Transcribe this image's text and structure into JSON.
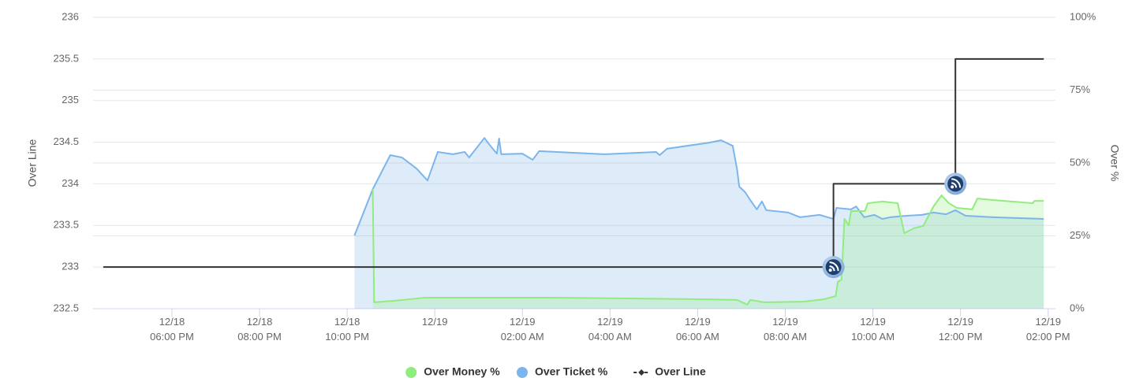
{
  "chart_data": {
    "type": "line",
    "xlim": [
      "12/18 04:12 PM",
      "12/19 02:10 PM"
    ],
    "xticks": [
      "12/18 06:00 PM",
      "12/18 08:00 PM",
      "12/18 10:00 PM",
      {
        "value": "12/19 12:00 AM",
        "label": "12/19"
      },
      "12/19 02:00 AM",
      "12/19 04:00 AM",
      "12/19 06:00 AM",
      "12/19 08:00 AM",
      "12/19 10:00 AM",
      "12/19 12:00 PM",
      "12/19 02:00 PM"
    ],
    "ylabel": "Over Line",
    "ylim": [
      232.5,
      236
    ],
    "yticks": [
      232.5,
      233,
      233.5,
      234,
      234.5,
      235,
      235.5,
      236
    ],
    "y2label": "Over %",
    "y2lim": [
      0,
      100
    ],
    "y2ticks": [
      {
        "value": 0,
        "label": "0%"
      },
      {
        "value": 25,
        "label": "25%"
      },
      {
        "value": 50,
        "label": "50%"
      },
      {
        "value": 75,
        "label": "75%"
      },
      {
        "value": 100,
        "label": "100%"
      }
    ],
    "grid": true,
    "legend": "bottom",
    "series": [
      {
        "name": "Over Money %",
        "color": "#90ed7d",
        "axis": "y2",
        "area": true,
        "x": [
          "12/18 10:35 PM",
          "12/18 10:37 PM",
          "12/18 11:04 PM",
          "12/18 11:47 PM",
          "12/19 12:52 AM",
          "12/19 02:40 AM",
          "12/19 04:28 AM",
          "12/19 06:16 AM",
          "12/19 06:54 AM",
          "12/19 07:08 AM",
          "12/19 07:12 AM",
          "12/19 07:31 AM",
          "12/19 08:25 AM",
          "12/19 08:52 AM",
          "12/19 09:09 AM",
          "12/19 09:12 AM",
          "12/19 09:17 AM",
          "12/19 09:21 AM",
          "12/19 09:27 AM",
          "12/19 09:30 AM",
          "12/19 09:49 AM",
          "12/19 09:53 AM",
          "12/19 10:13 AM",
          "12/19 10:34 AM",
          "12/19 10:43 AM",
          "12/19 10:56 AM",
          "12/19 11:09 AM",
          "12/19 11:23 AM",
          "12/19 11:34 AM",
          "12/19 11:44 AM",
          "12/19 11:55 AM",
          "12/19 12:16 PM",
          "12/19 12:23 PM",
          "12/19 12:45 PM",
          "12/19 01:39 PM",
          "12/19 01:41 PM",
          "12/19 01:54 PM"
        ],
        "values": [
          41,
          2.2,
          2.7,
          3.8,
          3.8,
          3.8,
          3.5,
          3.2,
          3,
          1.4,
          3,
          2.2,
          2.4,
          3.2,
          4.3,
          9.2,
          10,
          30.8,
          28.6,
          33.5,
          33.5,
          36.2,
          36.8,
          36.2,
          25.9,
          27.6,
          28.4,
          35.1,
          38.9,
          36.2,
          34.6,
          34.1,
          37.8,
          37.3,
          36.2,
          37,
          37
        ]
      },
      {
        "name": "Over Ticket %",
        "color": "#7cb5ec",
        "axis": "y2",
        "area": true,
        "x": [
          "12/18 10:10 PM",
          "12/18 10:35 PM",
          "12/18 10:59 PM",
          "12/18 11:15 PM",
          "12/18 11:35 PM",
          "12/18 11:50 PM",
          "12/19 12:04 AM",
          "12/19 12:25 AM",
          "12/19 12:41 AM",
          "12/19 12:47 AM",
          "12/19 01:08 AM",
          "12/19 01:16 AM",
          "12/19 01:25 AM",
          "12/19 01:28 AM",
          "12/19 01:31 AM",
          "12/19 02:00 AM",
          "12/19 02:14 AM",
          "12/19 02:23 AM",
          "12/19 03:53 AM",
          "12/19 05:03 AM",
          "12/19 05:08 AM",
          "12/19 05:18 AM",
          "12/19 06:16 AM",
          "12/19 06:32 AM",
          "12/19 06:48 AM",
          "12/19 06:54 AM",
          "12/19 06:57 AM",
          "12/19 07:05 AM",
          "12/19 07:12 AM",
          "12/19 07:21 AM",
          "12/19 07:28 AM",
          "12/19 07:34 AM",
          "12/19 08:04 AM",
          "12/19 08:20 AM",
          "12/19 08:47 AM",
          "12/19 09:06 AM",
          "12/19 09:10 AM",
          "12/19 09:30 AM",
          "12/19 09:37 AM",
          "12/19 09:48 AM",
          "12/19 10:02 AM",
          "12/19 10:13 AM",
          "12/19 10:24 AM",
          "12/19 10:46 AM",
          "12/19 11:07 AM",
          "12/19 11:23 AM",
          "12/19 11:40 AM",
          "12/19 11:53 AM",
          "12/19 12:07 PM",
          "12/19 12:45 PM",
          "12/19 01:54 PM"
        ],
        "values": [
          25.1,
          41,
          52.7,
          51.9,
          48.1,
          44,
          53.8,
          53,
          53.8,
          51.9,
          58.6,
          55.9,
          53.2,
          58.4,
          53,
          53.2,
          51.1,
          54.1,
          53,
          53.8,
          52.7,
          54.9,
          57,
          57.8,
          55.9,
          47.8,
          41.9,
          40,
          37.3,
          34.1,
          36.8,
          33.8,
          33,
          31.4,
          32.2,
          30.8,
          34.6,
          34.1,
          35.1,
          31.4,
          32.2,
          30.8,
          31.4,
          31.9,
          32.2,
          33,
          32.4,
          33.8,
          31.9,
          31.4,
          30.8
        ]
      },
      {
        "name": "Over Line",
        "color": "#333333",
        "axis": "y",
        "step": true,
        "x": [
          "12/18 04:26 PM",
          "12/19 09:06 AM",
          "12/19 11:53 AM",
          "12/19 01:54 PM"
        ],
        "values": [
          233,
          234,
          235.5,
          235.5
        ]
      }
    ]
  }
}
